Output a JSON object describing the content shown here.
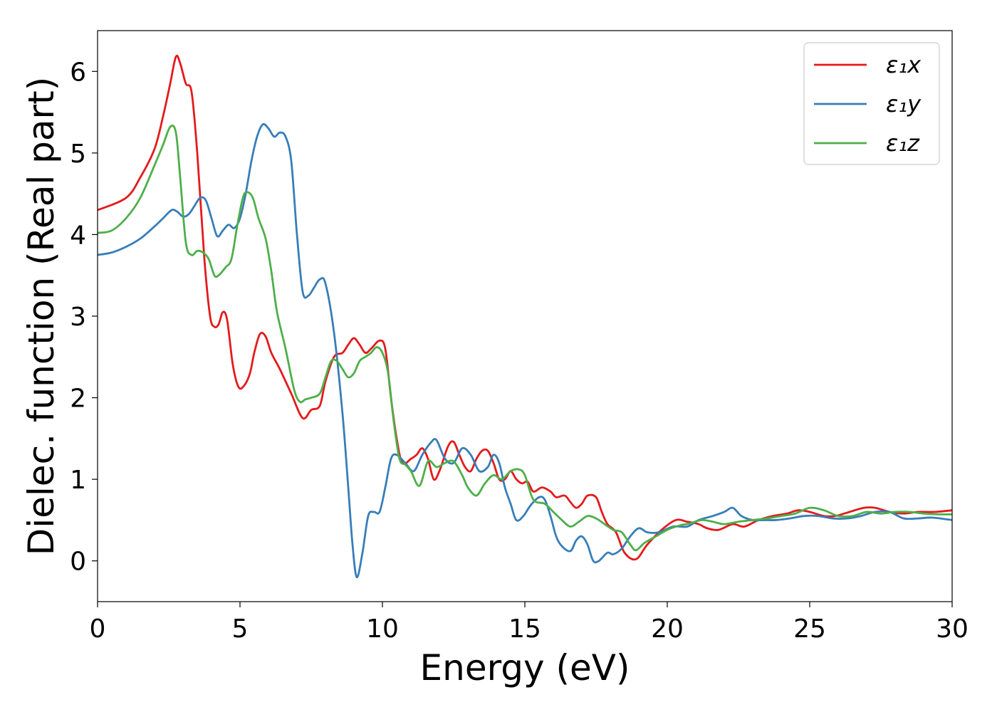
{
  "chart_data": {
    "type": "line",
    "xlabel": "Energy (eV)",
    "ylabel": "Dielec. function (Real part)",
    "xlim": [
      0,
      30
    ],
    "ylim": [
      -0.5,
      6.5
    ],
    "xticks": [
      0,
      5,
      10,
      15,
      20,
      25,
      30
    ],
    "xtick_labels": [
      "0",
      "5",
      "10",
      "15",
      "20",
      "25",
      "30"
    ],
    "yticks": [
      0,
      1,
      2,
      3,
      4,
      5,
      6
    ],
    "ytick_labels": [
      "0",
      "1",
      "2",
      "3",
      "4",
      "5",
      "6"
    ],
    "grid": false,
    "legend_position": "top-right",
    "series": [
      {
        "name": "ε₁x",
        "color": "#e41a1c",
        "x": [
          0,
          1,
          1.5,
          2,
          2.3,
          2.55,
          2.75,
          2.9,
          3.1,
          3.3,
          3.5,
          3.75,
          3.95,
          4.1,
          4.25,
          4.4,
          4.55,
          4.75,
          4.95,
          5.15,
          5.35,
          5.5,
          5.7,
          5.9,
          6.1,
          6.4,
          6.8,
          7.2,
          7.5,
          7.8,
          8.0,
          8.3,
          8.6,
          8.8,
          9.0,
          9.2,
          9.4,
          9.6,
          9.9,
          10.1,
          10.3,
          10.5,
          10.7,
          11.0,
          11.2,
          11.4,
          11.6,
          11.8,
          12.0,
          12.3,
          12.5,
          12.7,
          12.9,
          13.1,
          13.3,
          13.5,
          13.7,
          13.9,
          14.1,
          14.3,
          14.5,
          14.7,
          14.9,
          15.1,
          15.3,
          15.6,
          15.9,
          16.1,
          16.4,
          16.6,
          16.8,
          17.0,
          17.2,
          17.5,
          17.7,
          17.9,
          18.2,
          18.5,
          18.9,
          19.3,
          19.8,
          20.3,
          20.7,
          21.1,
          21.4,
          21.8,
          22.3,
          22.7,
          23.2,
          23.7,
          24.2,
          24.6,
          25.0,
          25.5,
          25.9,
          26.4,
          26.9,
          27.3,
          27.8,
          28.3,
          28.8,
          29.4,
          30.0
        ],
        "y": [
          4.3,
          4.45,
          4.7,
          5.05,
          5.45,
          5.85,
          6.18,
          6.1,
          5.85,
          5.75,
          5.0,
          3.7,
          3.0,
          2.87,
          2.9,
          3.05,
          2.95,
          2.4,
          2.13,
          2.15,
          2.3,
          2.55,
          2.78,
          2.75,
          2.55,
          2.35,
          2.05,
          1.75,
          1.85,
          1.9,
          2.2,
          2.5,
          2.55,
          2.65,
          2.73,
          2.65,
          2.55,
          2.6,
          2.7,
          2.6,
          2.0,
          1.5,
          1.2,
          1.25,
          1.3,
          1.38,
          1.25,
          1.0,
          1.1,
          1.4,
          1.46,
          1.3,
          1.15,
          1.1,
          1.25,
          1.35,
          1.35,
          1.2,
          1.0,
          1.0,
          1.1,
          1.0,
          0.95,
          0.97,
          0.85,
          0.9,
          0.85,
          0.78,
          0.8,
          0.72,
          0.65,
          0.7,
          0.8,
          0.78,
          0.6,
          0.45,
          0.35,
          0.1,
          0.02,
          0.2,
          0.38,
          0.5,
          0.48,
          0.45,
          0.4,
          0.38,
          0.45,
          0.42,
          0.5,
          0.55,
          0.58,
          0.62,
          0.6,
          0.55,
          0.55,
          0.6,
          0.65,
          0.65,
          0.6,
          0.58,
          0.6,
          0.6,
          0.62
        ]
      },
      {
        "name": "ε₁y",
        "color": "#377eb8",
        "x": [
          0,
          0.5,
          1.0,
          1.5,
          2.0,
          2.3,
          2.6,
          2.8,
          3.0,
          3.2,
          3.4,
          3.6,
          3.8,
          4.0,
          4.2,
          4.4,
          4.6,
          4.8,
          5.0,
          5.2,
          5.4,
          5.6,
          5.8,
          6.0,
          6.2,
          6.4,
          6.6,
          6.8,
          7.0,
          7.2,
          7.4,
          7.6,
          7.8,
          8.0,
          8.3,
          8.6,
          8.8,
          8.95,
          9.1,
          9.3,
          9.5,
          9.7,
          9.9,
          10.1,
          10.3,
          10.5,
          10.8,
          11.1,
          11.4,
          11.7,
          11.9,
          12.2,
          12.5,
          12.8,
          13.1,
          13.4,
          13.7,
          13.9,
          14.1,
          14.3,
          14.5,
          14.7,
          14.95,
          15.2,
          15.5,
          15.7,
          15.9,
          16.1,
          16.3,
          16.6,
          16.8,
          17.0,
          17.2,
          17.4,
          17.6,
          17.9,
          18.1,
          18.4,
          18.7,
          19.0,
          19.3,
          19.7,
          20.2,
          20.7,
          21.1,
          21.6,
          22.0,
          22.3,
          22.6,
          23.0,
          23.4,
          23.8,
          24.3,
          24.8,
          25.3,
          25.8,
          26.3,
          26.8,
          27.3,
          27.8,
          28.3,
          28.8,
          29.3,
          30.0
        ],
        "y": [
          3.75,
          3.78,
          3.85,
          3.95,
          4.1,
          4.2,
          4.3,
          4.28,
          4.22,
          4.25,
          4.35,
          4.45,
          4.42,
          4.2,
          3.98,
          4.05,
          4.12,
          4.08,
          4.2,
          4.5,
          4.9,
          5.2,
          5.35,
          5.3,
          5.2,
          5.25,
          5.2,
          4.9,
          4.0,
          3.3,
          3.25,
          3.35,
          3.45,
          3.4,
          2.8,
          1.8,
          0.9,
          0.2,
          -0.2,
          0.1,
          0.55,
          0.6,
          0.6,
          0.9,
          1.25,
          1.3,
          1.2,
          1.1,
          1.3,
          1.45,
          1.48,
          1.25,
          1.2,
          1.38,
          1.3,
          1.1,
          1.15,
          1.3,
          1.2,
          0.9,
          0.7,
          0.5,
          0.55,
          0.68,
          0.78,
          0.75,
          0.55,
          0.3,
          0.18,
          0.12,
          0.25,
          0.3,
          0.2,
          0.0,
          0.0,
          0.1,
          0.08,
          0.15,
          0.3,
          0.4,
          0.35,
          0.35,
          0.42,
          0.42,
          0.5,
          0.55,
          0.6,
          0.65,
          0.55,
          0.5,
          0.5,
          0.5,
          0.52,
          0.55,
          0.55,
          0.52,
          0.52,
          0.55,
          0.6,
          0.6,
          0.52,
          0.52,
          0.53,
          0.5
        ]
      },
      {
        "name": "ε₁z",
        "color": "#4daf4a",
        "x": [
          0,
          0.5,
          1.0,
          1.5,
          2.0,
          2.3,
          2.55,
          2.75,
          2.9,
          3.1,
          3.3,
          3.5,
          3.7,
          3.9,
          4.1,
          4.25,
          4.5,
          4.7,
          4.9,
          5.1,
          5.25,
          5.45,
          5.65,
          5.9,
          6.1,
          6.3,
          6.6,
          6.9,
          7.1,
          7.3,
          7.5,
          7.8,
          8.0,
          8.2,
          8.4,
          8.6,
          8.8,
          9.0,
          9.2,
          9.4,
          9.6,
          9.8,
          10.0,
          10.2,
          10.4,
          10.6,
          10.8,
          11.0,
          11.3,
          11.6,
          11.9,
          12.2,
          12.5,
          12.8,
          13.0,
          13.3,
          13.6,
          13.9,
          14.2,
          14.5,
          14.8,
          15.0,
          15.3,
          15.7,
          16.0,
          16.3,
          16.6,
          16.9,
          17.2,
          17.5,
          17.8,
          18.1,
          18.4,
          18.7,
          18.9,
          19.2,
          19.6,
          20.0,
          20.4,
          20.8,
          21.2,
          21.6,
          22.0,
          22.5,
          23.0,
          23.5,
          24.0,
          24.5,
          25.0,
          25.5,
          26.0,
          26.5,
          27.0,
          27.5,
          28.0,
          28.5,
          29.0,
          29.5,
          30.0
        ],
        "y": [
          4.02,
          4.05,
          4.2,
          4.45,
          4.85,
          5.1,
          5.32,
          5.25,
          4.7,
          3.9,
          3.75,
          3.8,
          3.78,
          3.7,
          3.5,
          3.5,
          3.6,
          3.7,
          4.1,
          4.45,
          4.52,
          4.45,
          4.2,
          3.95,
          3.55,
          3.05,
          2.6,
          2.1,
          1.95,
          1.98,
          2.0,
          2.05,
          2.25,
          2.45,
          2.45,
          2.35,
          2.25,
          2.3,
          2.45,
          2.5,
          2.55,
          2.62,
          2.55,
          2.3,
          1.7,
          1.25,
          1.18,
          1.1,
          0.92,
          1.22,
          1.15,
          1.2,
          1.22,
          1.05,
          0.9,
          0.8,
          0.95,
          1.05,
          1.0,
          1.1,
          1.12,
          1.05,
          0.75,
          0.7,
          0.6,
          0.5,
          0.42,
          0.48,
          0.55,
          0.52,
          0.45,
          0.38,
          0.35,
          0.2,
          0.13,
          0.22,
          0.3,
          0.38,
          0.43,
          0.46,
          0.5,
          0.48,
          0.45,
          0.48,
          0.5,
          0.52,
          0.55,
          0.58,
          0.65,
          0.62,
          0.55,
          0.55,
          0.6,
          0.58,
          0.6,
          0.6,
          0.58,
          0.57,
          0.57
        ]
      }
    ]
  }
}
